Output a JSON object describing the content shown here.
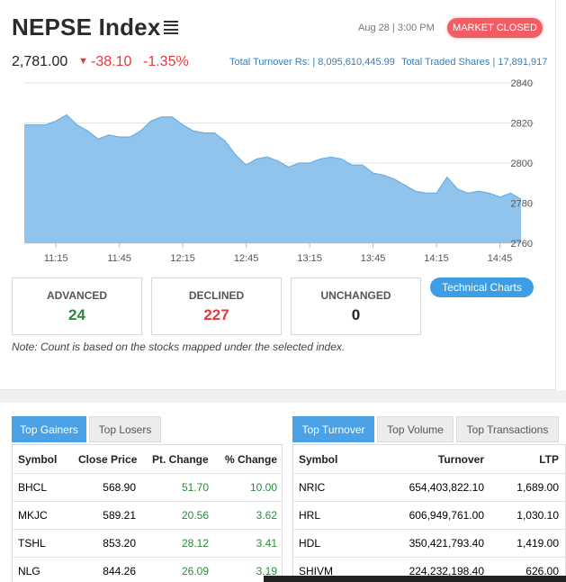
{
  "header": {
    "title": "NEPSE Index",
    "date": "Aug 28 | 3:00 PM",
    "market_status": "MARKET CLOSED",
    "value": "2,781.00",
    "change": "-38.10",
    "change_pct": "-1.35%",
    "total_turnover": "Total Turnover Rs: | 8,095,610,445.99",
    "total_shares": "Total Traded Shares | 17,891,917"
  },
  "chart_data": {
    "type": "area",
    "title": "",
    "xlabel": "",
    "ylabel": "",
    "ylim": [
      2760,
      2840
    ],
    "y_ticks": [
      "2840",
      "2820",
      "2800",
      "2780",
      "2760"
    ],
    "x_ticks": [
      "11:15",
      "11:45",
      "12:15",
      "12:45",
      "13:15",
      "13:45",
      "14:15",
      "14:45"
    ],
    "x": [
      "11:00",
      "11:05",
      "11:10",
      "11:15",
      "11:20",
      "11:25",
      "11:30",
      "11:35",
      "11:40",
      "11:45",
      "11:50",
      "11:55",
      "12:00",
      "12:05",
      "12:10",
      "12:15",
      "12:20",
      "12:25",
      "12:30",
      "12:35",
      "12:40",
      "12:45",
      "12:50",
      "12:55",
      "13:00",
      "13:05",
      "13:10",
      "13:15",
      "13:20",
      "13:25",
      "13:30",
      "13:35",
      "13:40",
      "13:45",
      "13:50",
      "13:55",
      "14:00",
      "14:05",
      "14:10",
      "14:15",
      "14:20",
      "14:25",
      "14:30",
      "14:35",
      "14:40",
      "14:45",
      "14:50",
      "14:55"
    ],
    "values": [
      2819,
      2819,
      2819,
      2821,
      2824,
      2819,
      2816,
      2812,
      2814,
      2813,
      2813,
      2816,
      2821,
      2823,
      2823,
      2819,
      2816,
      2815,
      2815,
      2811,
      2804,
      2799,
      2802,
      2803,
      2801,
      2798,
      2800,
      2800,
      2802,
      2803,
      2802,
      2799,
      2799,
      2795,
      2794,
      2792,
      2789,
      2786,
      2785,
      2785,
      2793,
      2787,
      2785,
      2786,
      2785,
      2783,
      2785,
      2782
    ],
    "fill_color": "#91c4ec",
    "line_color": "#6aaee0"
  },
  "stats": {
    "advanced": {
      "label": "ADVANCED",
      "value": "24"
    },
    "declined": {
      "label": "DECLINED",
      "value": "227"
    },
    "unchanged": {
      "label": "UNCHANGED",
      "value": "0"
    }
  },
  "tech_button": "Technical Charts",
  "note": "Note: Count is based on the stocks mapped under the selected index.",
  "left_tabs": [
    "Top Gainers",
    "Top Losers"
  ],
  "left_table": {
    "headers": [
      "Symbol",
      "Close Price",
      "Pt. Change",
      "% Change"
    ],
    "rows": [
      [
        "BHCL",
        "568.90",
        "51.70",
        "10.00"
      ],
      [
        "MKJC",
        "589.21",
        "20.56",
        "3.62"
      ],
      [
        "TSHL",
        "853.20",
        "28.12",
        "3.41"
      ],
      [
        "NLG",
        "844.26",
        "26.09",
        "3.19"
      ]
    ]
  },
  "right_tabs": [
    "Top Turnover",
    "Top Volume",
    "Top Transactions"
  ],
  "right_table": {
    "headers": [
      "Symbol",
      "Turnover",
      "LTP"
    ],
    "rows": [
      [
        "NRIC",
        "654,403,822.10",
        "1,689.00"
      ],
      [
        "HRL",
        "606,949,761.00",
        "1,030.10"
      ],
      [
        "HDL",
        "350,421,793.40",
        "1,419.00"
      ],
      [
        "SHIVM",
        "224,232,198.40",
        "626.00"
      ]
    ]
  },
  "colors": {
    "accent": "#4aa1e6",
    "down": "#e0393e",
    "up": "#2a8a3a",
    "badge": "#f25c63"
  }
}
